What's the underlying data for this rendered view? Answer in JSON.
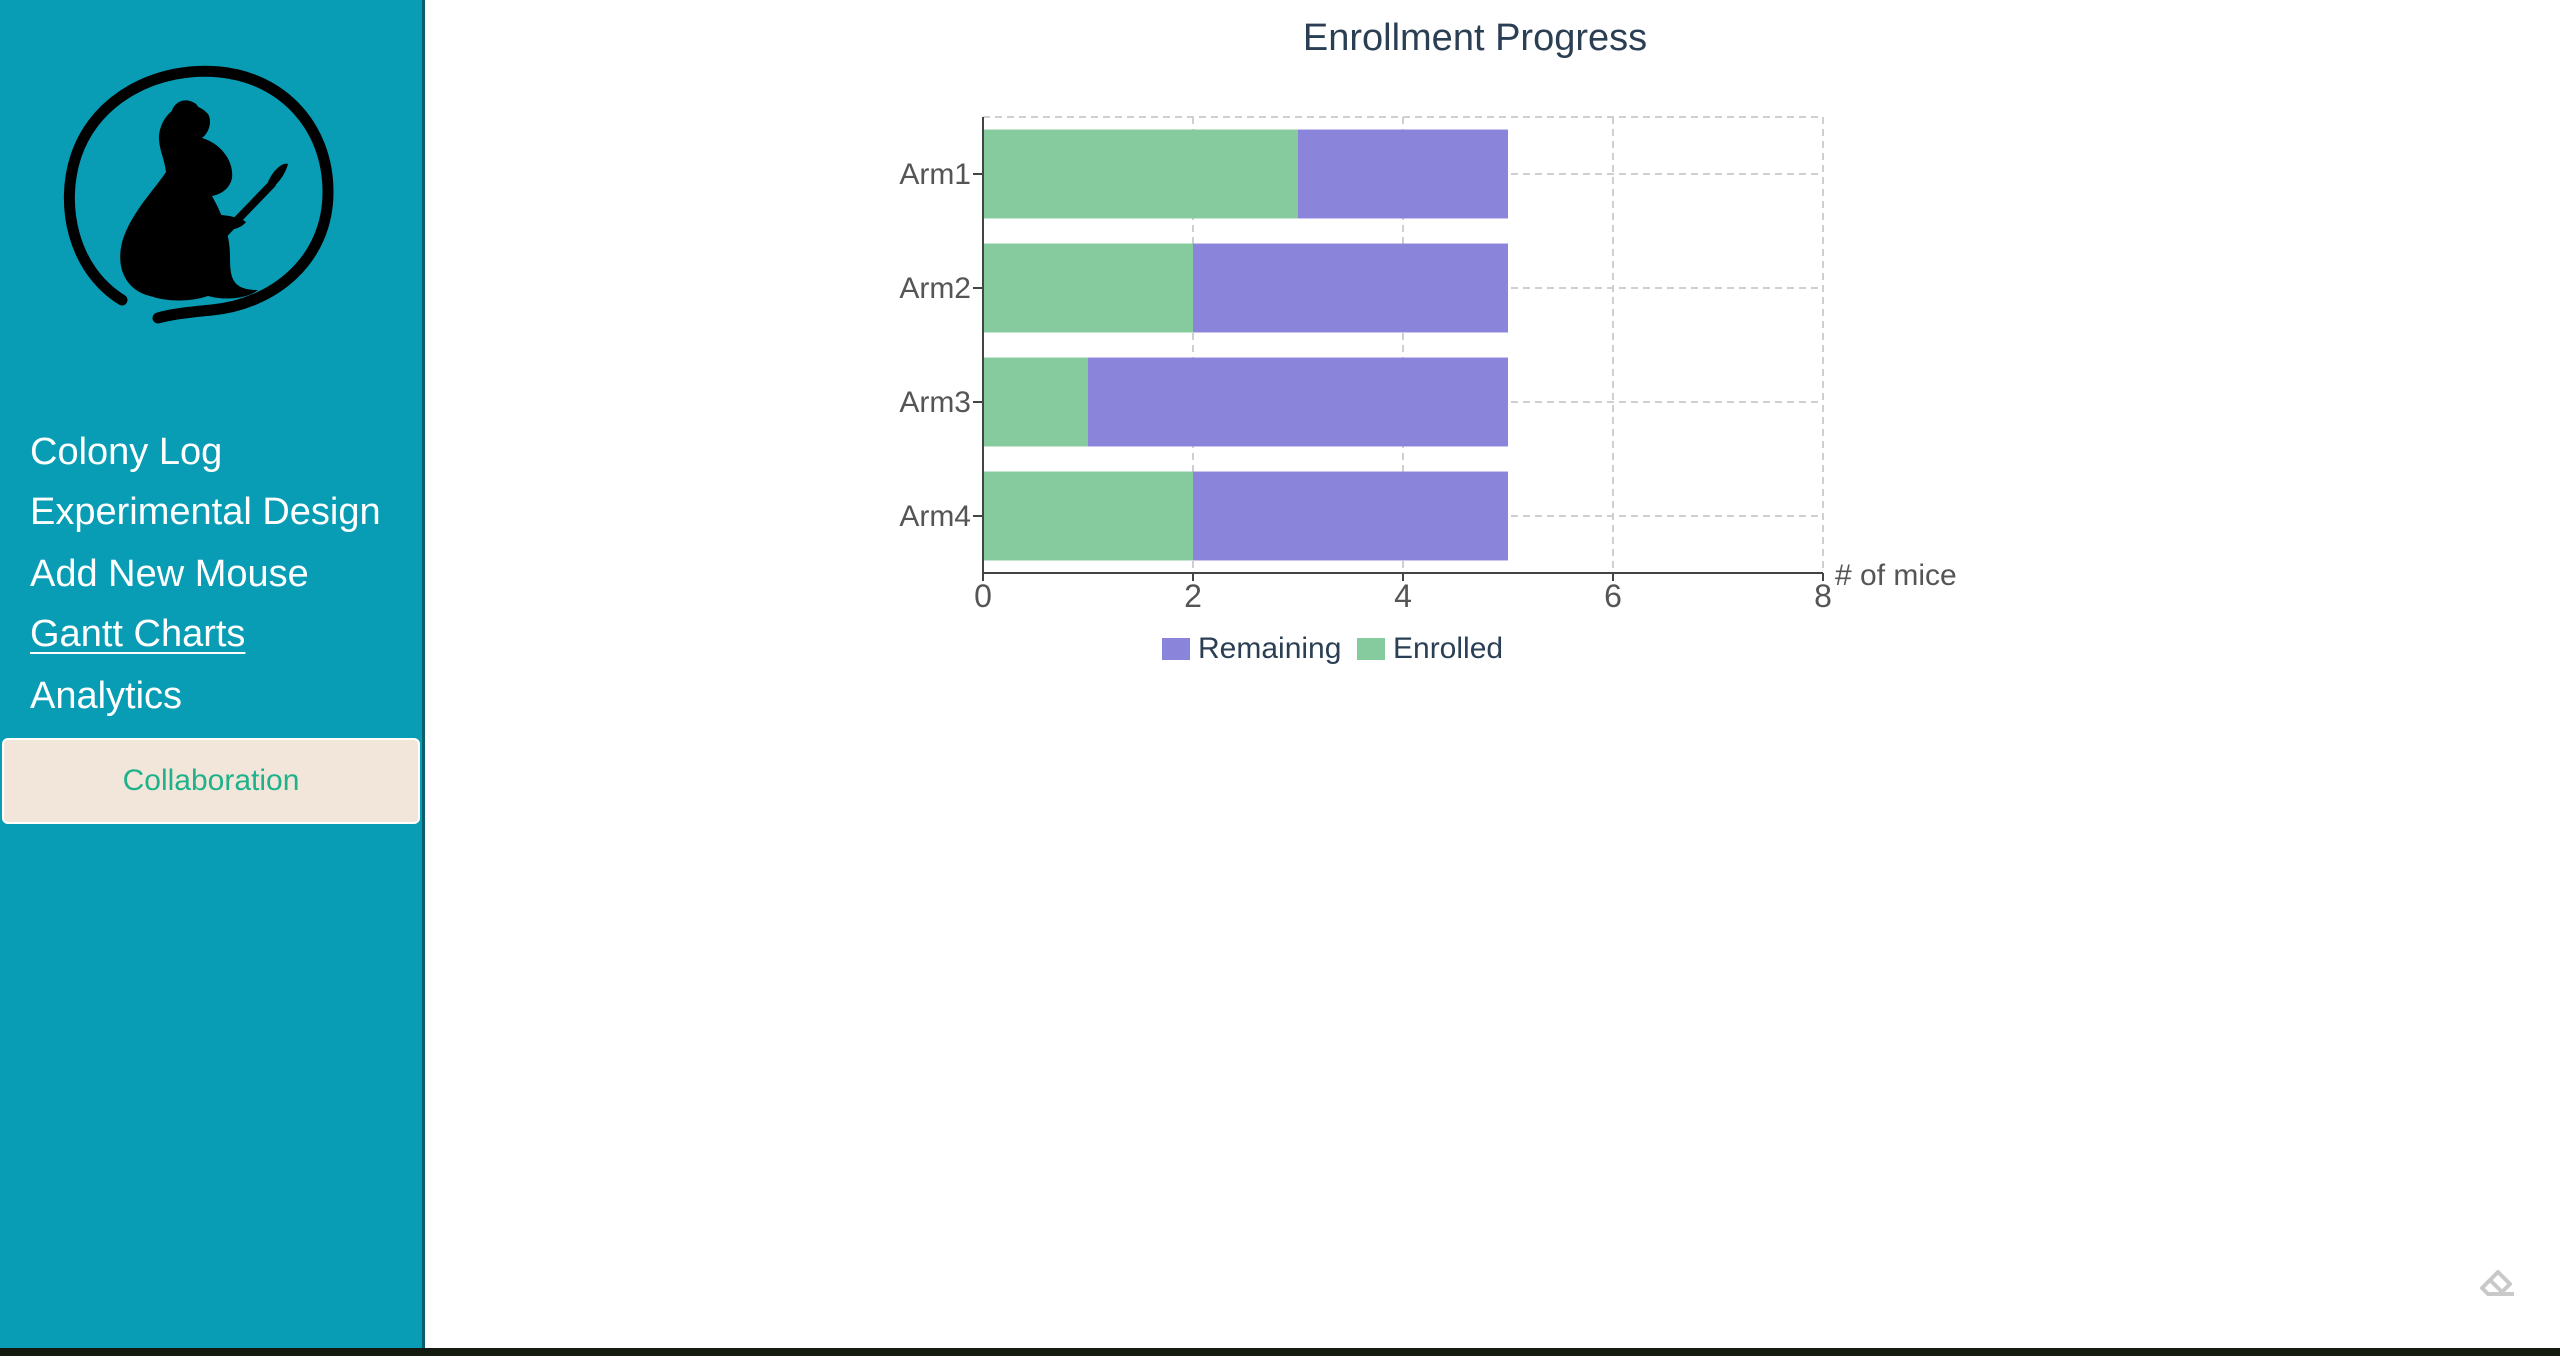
{
  "sidebar": {
    "nav": [
      {
        "label": "Colony Log",
        "name": "nav-colony-log",
        "active": false
      },
      {
        "label": "Experimental Design",
        "name": "nav-experimental-design",
        "active": false
      },
      {
        "label": "Add New Mouse",
        "name": "nav-add-new-mouse",
        "active": false
      },
      {
        "label": "Gantt Charts",
        "name": "nav-gantt-charts",
        "active": true
      },
      {
        "label": "Analytics",
        "name": "nav-analytics",
        "active": false
      }
    ],
    "collaboration_label": "Collaboration",
    "logo_icon": "mouse-painter-logo-icon"
  },
  "colors": {
    "sidebar_bg": "#089db4",
    "enrolled": "#86cb9e",
    "remaining": "#8a85da",
    "collab_bg": "#f2e6db",
    "collab_text": "#1fb28a"
  },
  "chart_data": {
    "type": "bar",
    "orientation": "horizontal",
    "stacked": true,
    "title": "Enrollment Progress",
    "xlabel": "# of mice",
    "ylabel": "",
    "categories": [
      "Arm1",
      "Arm2",
      "Arm3",
      "Arm4"
    ],
    "series": [
      {
        "name": "Enrolled",
        "color": "#86cb9e",
        "values": [
          3,
          2,
          1,
          2
        ]
      },
      {
        "name": "Remaining",
        "color": "#8a85da",
        "values": [
          2,
          3,
          4,
          3
        ]
      }
    ],
    "xlim": [
      0,
      8
    ],
    "xticks": [
      0,
      2,
      4,
      6,
      8
    ],
    "grid": true,
    "legend": {
      "position": "bottom",
      "order": [
        "Remaining",
        "Enrolled"
      ]
    }
  },
  "corner_icon": "eraser-icon"
}
